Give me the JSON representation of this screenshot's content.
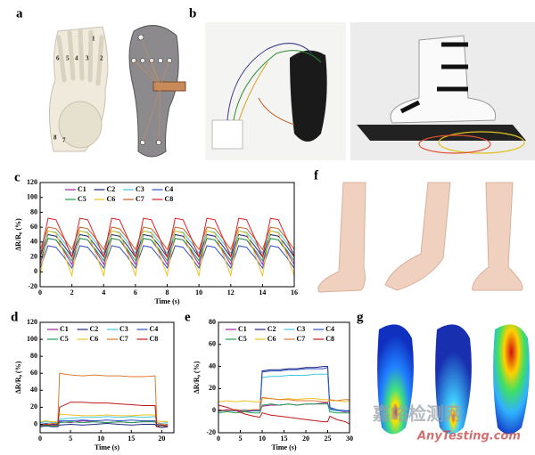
{
  "panel_labels": [
    "a",
    "b",
    "f",
    "g"
  ],
  "bone_labels": [
    "1",
    "2",
    "3",
    "4",
    "5",
    "6",
    "7",
    "8"
  ],
  "watermark": [
    "嘉峪检测网",
    "AnyTesting.com"
  ],
  "chart_data": [
    {
      "type": "line",
      "panel": "c",
      "x_label": "Time (s)",
      "y_label": "ΔR/R₀ (%)",
      "x": [
        0,
        0.5,
        1,
        1.5,
        2,
        2.5,
        3,
        3.5,
        4,
        4.5,
        5,
        5.5,
        6,
        6.5,
        7,
        7.5,
        8,
        8.5,
        9,
        9.5,
        10,
        10.5,
        11,
        11.5,
        12,
        12.5,
        13,
        13.5,
        14,
        14.5,
        15,
        15.5,
        16
      ],
      "xlim": [
        0,
        16
      ],
      "xticks": [
        0,
        2,
        4,
        6,
        8,
        10,
        12,
        14,
        16
      ],
      "ylim": [
        -20,
        120
      ],
      "yticks": [
        -20,
        0,
        20,
        40,
        60,
        80,
        100,
        120
      ],
      "series": [
        {
          "name": "C1",
          "color": "#a020a0",
          "values": [
            10,
            45,
            43,
            28,
            10,
            45,
            43,
            28,
            10,
            45,
            43,
            28,
            10,
            45,
            43,
            28,
            10,
            45,
            43,
            28,
            10,
            45,
            43,
            28,
            10,
            45,
            43,
            28,
            10,
            45,
            43,
            28,
            10
          ]
        },
        {
          "name": "C2",
          "color": "#1a237e",
          "values": [
            20,
            50,
            48,
            35,
            20,
            50,
            48,
            35,
            20,
            50,
            48,
            35,
            20,
            50,
            48,
            35,
            20,
            50,
            48,
            35,
            20,
            50,
            48,
            35,
            20,
            50,
            48,
            35,
            20,
            50,
            48,
            35,
            20
          ]
        },
        {
          "name": "C3",
          "color": "#40c8e0",
          "values": [
            25,
            55,
            53,
            40,
            25,
            55,
            53,
            40,
            25,
            55,
            53,
            40,
            25,
            55,
            53,
            40,
            25,
            55,
            53,
            40,
            25,
            55,
            53,
            40,
            25,
            55,
            53,
            40,
            25,
            55,
            53,
            40,
            25
          ]
        },
        {
          "name": "C4",
          "color": "#2f4fc8",
          "values": [
            5,
            35,
            33,
            20,
            5,
            35,
            33,
            20,
            5,
            35,
            33,
            20,
            5,
            35,
            33,
            20,
            5,
            35,
            33,
            20,
            5,
            35,
            33,
            20,
            5,
            35,
            33,
            20,
            5,
            35,
            33,
            20,
            5
          ]
        },
        {
          "name": "C5",
          "color": "#20a050",
          "values": [
            15,
            45,
            43,
            30,
            15,
            45,
            43,
            30,
            15,
            45,
            43,
            30,
            15,
            45,
            43,
            30,
            15,
            45,
            43,
            30,
            15,
            45,
            43,
            30,
            15,
            45,
            43,
            30,
            15,
            45,
            43,
            30,
            15
          ]
        },
        {
          "name": "C6",
          "color": "#f0c020",
          "values": [
            -5,
            55,
            52,
            25,
            -5,
            55,
            52,
            25,
            -5,
            55,
            52,
            25,
            -5,
            55,
            52,
            25,
            -5,
            55,
            52,
            25,
            -5,
            55,
            52,
            25,
            -5,
            55,
            52,
            25,
            -5,
            55,
            52,
            25,
            -5
          ]
        },
        {
          "name": "C7",
          "color": "#c8602a",
          "values": [
            30,
            60,
            58,
            45,
            30,
            60,
            58,
            45,
            30,
            60,
            58,
            45,
            30,
            60,
            58,
            45,
            30,
            60,
            58,
            45,
            30,
            60,
            58,
            45,
            30,
            60,
            58,
            45,
            30,
            60,
            58,
            45,
            30
          ]
        },
        {
          "name": "C8",
          "color": "#e02020",
          "values": [
            20,
            72,
            70,
            46,
            20,
            72,
            70,
            46,
            20,
            72,
            70,
            46,
            20,
            72,
            70,
            46,
            20,
            72,
            70,
            46,
            20,
            72,
            70,
            46,
            20,
            72,
            70,
            46,
            20,
            72,
            70,
            46,
            20
          ]
        }
      ]
    },
    {
      "type": "line",
      "panel": "d",
      "x_label": "Time (s)",
      "y_label": "ΔR/R₀ (%)",
      "x": [
        0,
        1,
        2,
        2.9,
        3.2,
        5,
        7,
        9,
        11,
        13,
        15,
        17,
        18.9,
        19.2,
        20,
        21
      ],
      "xlim": [
        0,
        22
      ],
      "xticks": [
        0,
        5,
        10,
        15,
        20
      ],
      "ylim": [
        -10,
        120
      ],
      "yticks": [
        0,
        20,
        40,
        60,
        80,
        100,
        120
      ],
      "series": [
        {
          "name": "C1",
          "color": "#a020a0",
          "values": [
            0,
            -2,
            0,
            0,
            3,
            2,
            4,
            3,
            2,
            3,
            2,
            3,
            3,
            0,
            -2,
            -3
          ]
        },
        {
          "name": "C2",
          "color": "#1a237e",
          "values": [
            -3,
            -2,
            -3,
            -3,
            -1,
            0,
            -1,
            0,
            1,
            0,
            -1,
            0,
            0,
            -3,
            -4,
            -3
          ]
        },
        {
          "name": "C3",
          "color": "#40c8e0",
          "values": [
            2,
            3,
            2,
            2,
            6,
            7,
            8,
            8,
            9,
            8,
            9,
            8,
            9,
            2,
            1,
            2
          ]
        },
        {
          "name": "C4",
          "color": "#2f4fc8",
          "values": [
            0,
            1,
            0,
            0,
            4,
            4,
            5,
            4,
            5,
            4,
            5,
            4,
            4,
            0,
            -1,
            0
          ]
        },
        {
          "name": "C5",
          "color": "#20a050",
          "values": [
            -2,
            -1,
            -2,
            -2,
            2,
            3,
            2,
            3,
            2,
            3,
            2,
            3,
            3,
            -1,
            -2,
            -2
          ]
        },
        {
          "name": "C6",
          "color": "#f0c020",
          "values": [
            3,
            4,
            3,
            3,
            12,
            11,
            10,
            10,
            11,
            10,
            10,
            11,
            11,
            4,
            3,
            3
          ]
        },
        {
          "name": "C7",
          "color": "#e07a30",
          "values": [
            0,
            0,
            1,
            1,
            60,
            58,
            57,
            58,
            57,
            57,
            56,
            56,
            57,
            2,
            0,
            -1
          ]
        },
        {
          "name": "C8",
          "color": "#c01818",
          "values": [
            -1,
            0,
            -1,
            -1,
            20,
            26,
            26,
            25,
            25,
            24,
            23,
            22,
            22,
            -3,
            -1,
            -2
          ]
        }
      ]
    },
    {
      "type": "line",
      "panel": "e",
      "x_label": "Time (s)",
      "y_label": "ΔR/R₀ (%)",
      "x": [
        0,
        2,
        4,
        6,
        8,
        9.5,
        10,
        12,
        14,
        16,
        18,
        20,
        22,
        24,
        25,
        25.5,
        27,
        29,
        30
      ],
      "xlim": [
        0,
        30
      ],
      "xticks": [
        0,
        5,
        10,
        15,
        20,
        25,
        30
      ],
      "ylim": [
        -20,
        80
      ],
      "yticks": [
        -20,
        0,
        20,
        40,
        60,
        80
      ],
      "series": [
        {
          "name": "C1",
          "color": "#a020a0",
          "values": [
            0,
            1,
            0,
            -1,
            0,
            0,
            4,
            5,
            5,
            6,
            5,
            6,
            6,
            7,
            7,
            1,
            0,
            -1,
            0
          ]
        },
        {
          "name": "C2",
          "color": "#1a237e",
          "values": [
            0,
            0,
            1,
            0,
            0,
            0,
            36,
            37,
            37,
            38,
            38,
            39,
            39,
            40,
            40,
            2,
            0,
            0,
            -1
          ]
        },
        {
          "name": "C3",
          "color": "#40c8e0",
          "values": [
            0,
            0,
            0,
            1,
            0,
            0,
            30,
            31,
            31,
            32,
            32,
            32,
            33,
            33,
            33,
            1,
            0,
            0,
            0
          ]
        },
        {
          "name": "C4",
          "color": "#2f4fc8",
          "values": [
            0,
            0,
            0,
            0,
            0,
            0,
            35,
            36,
            36,
            37,
            37,
            38,
            38,
            38,
            39,
            3,
            1,
            0,
            0
          ]
        },
        {
          "name": "C5",
          "color": "#20a050",
          "values": [
            -2,
            -1,
            -2,
            -1,
            -2,
            -2,
            5,
            6,
            5,
            6,
            5,
            6,
            6,
            6,
            6,
            -1,
            -2,
            -2,
            -2
          ]
        },
        {
          "name": "C6",
          "color": "#f0c020",
          "values": [
            8,
            9,
            8,
            9,
            8,
            8,
            11,
            11,
            10,
            11,
            10,
            11,
            11,
            10,
            10,
            9,
            9,
            8,
            9
          ]
        },
        {
          "name": "C7",
          "color": "#e07a30",
          "values": [
            1,
            0,
            1,
            0,
            1,
            1,
            12,
            11,
            10,
            10,
            9,
            9,
            9,
            8,
            8,
            10,
            9,
            10,
            10
          ]
        },
        {
          "name": "C8",
          "color": "#c01818",
          "values": [
            5,
            3,
            0,
            -3,
            -5,
            -6,
            -2,
            -4,
            -5,
            -6,
            -7,
            -8,
            -9,
            -10,
            -10,
            -5,
            -8,
            -10,
            -12
          ]
        }
      ]
    }
  ]
}
